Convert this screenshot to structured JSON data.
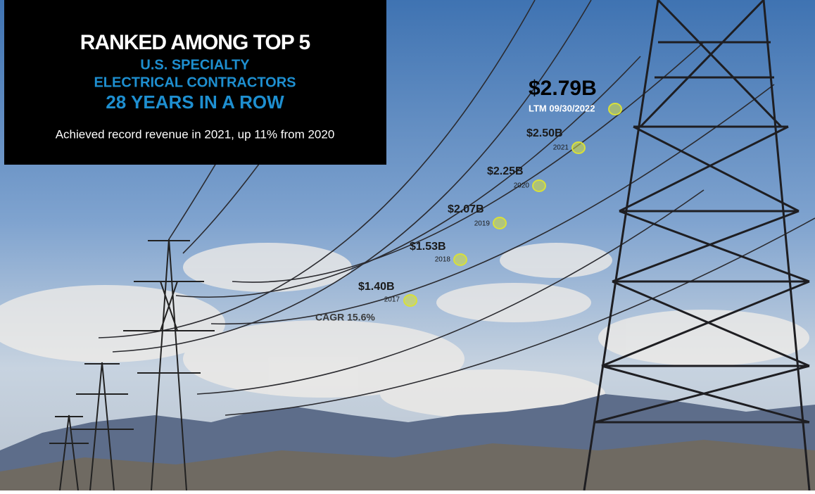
{
  "header": {
    "title": "RANKED AMONG TOP 5",
    "line1": "U.S. SPECIALTY",
    "line2": "ELECTRICAL CONTRACTORS",
    "line3": "28 YEARS IN A ROW",
    "subtitle": "Achieved record revenue in 2021, up 11% from 2020"
  },
  "milestones": [
    {
      "value": "$1.40B",
      "period": "2017"
    },
    {
      "value": "$1.53B",
      "period": "2018"
    },
    {
      "value": "$2.07B",
      "period": "2019"
    },
    {
      "value": "$2.25B",
      "period": "2020"
    },
    {
      "value": "$2.50B",
      "period": "2021"
    },
    {
      "value": "$2.79B",
      "period": "LTM 09/30/2022"
    }
  ],
  "cagr": "CAGR 15.6%"
}
